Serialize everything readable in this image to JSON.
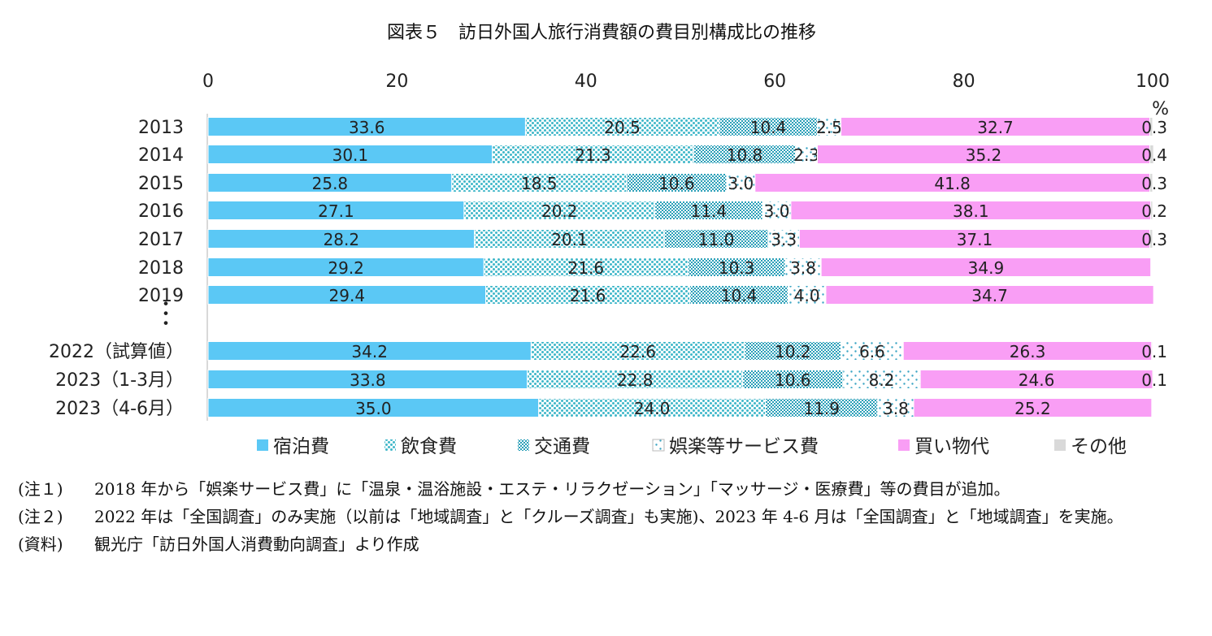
{
  "chart_data": {
    "type": "bar",
    "orientation": "horizontal",
    "stacked": true,
    "title": "図表５　訪日外国人旅行消費額の費目別構成比の推移",
    "unit": "%",
    "xlim": [
      0,
      100
    ],
    "xticks": [
      "0",
      "20",
      "40",
      "60",
      "80",
      "100"
    ],
    "grid": false,
    "legend_position": "bottom",
    "categories": [
      "2013",
      "2014",
      "2015",
      "2016",
      "2017",
      "2018",
      "2019",
      "2022（試算値）",
      "2023（1-3月）",
      "2023（4-6月）"
    ],
    "gap_marker": "・\n・\n・",
    "series": [
      {
        "name": "宿泊費",
        "color": "#5bc8f5",
        "pattern": "solid",
        "values": [
          33.6,
          30.1,
          25.8,
          27.1,
          28.2,
          29.2,
          29.4,
          34.2,
          33.8,
          35.0
        ],
        "labels": [
          "33.6",
          "30.1",
          "25.8",
          "27.1",
          "28.2",
          "29.2",
          "29.4",
          "34.2",
          "33.8",
          "35.0"
        ]
      },
      {
        "name": "飲食費",
        "color": "#3fb7c9",
        "pattern": "dense-dots",
        "values": [
          20.5,
          21.3,
          18.5,
          20.2,
          20.1,
          21.6,
          21.6,
          22.6,
          22.8,
          24.0
        ],
        "labels": [
          "20.5",
          "21.3",
          "18.5",
          "20.2",
          "20.1",
          "21.6",
          "21.6",
          "22.6",
          "22.8",
          "24.0"
        ]
      },
      {
        "name": "交通費",
        "color": "#2a9fb8",
        "pattern": "grid-dots",
        "values": [
          10.4,
          10.8,
          10.6,
          11.4,
          11.0,
          10.3,
          10.4,
          10.2,
          10.6,
          11.9
        ],
        "labels": [
          "10.4",
          "10.8",
          "10.6",
          "11.4",
          "11.0",
          "10.3",
          "10.4",
          "10.2",
          "10.6",
          "11.9"
        ]
      },
      {
        "name": "娯楽等サービス費",
        "color": "#3aa5c4",
        "pattern": "sparse-dots",
        "values": [
          2.5,
          2.3,
          3.0,
          3.0,
          3.3,
          3.8,
          4.0,
          6.6,
          8.2,
          3.8
        ],
        "labels": [
          "2.5",
          "2.3",
          "3.0",
          "3.0",
          "3.3",
          "3.8",
          "4.0",
          "6.6",
          "8.2",
          "3.8"
        ]
      },
      {
        "name": "買い物代",
        "color": "#f99ef5",
        "pattern": "solid",
        "values": [
          32.7,
          35.2,
          41.8,
          38.1,
          37.1,
          34.9,
          34.7,
          26.3,
          24.6,
          25.2
        ],
        "labels": [
          "32.7",
          "35.2",
          "41.8",
          "38.1",
          "37.1",
          "34.9",
          "34.7",
          "26.3",
          "24.6",
          "25.2"
        ]
      },
      {
        "name": "その他",
        "color": "#d9d9d9",
        "pattern": "solid",
        "values": [
          0.3,
          0.4,
          0.3,
          0.2,
          0.3,
          0.0,
          0.0,
          0.1,
          0.1,
          0.0
        ],
        "labels": [
          "0.3",
          "0.4",
          "0.3",
          "0.2",
          "0.3",
          "",
          "",
          "0.1",
          "0.1",
          ""
        ]
      }
    ]
  },
  "notes": [
    {
      "label": "(注１)",
      "text": "2018 年から「娯楽サービス費」に「温泉・温浴施設・エステ・リラクゼーション」「マッサージ・医療費」等の費目が追加。"
    },
    {
      "label": "(注２)",
      "text": "2022 年は「全国調査」のみ実施（以前は「地域調査」と「クルーズ調査」も実施)、2023 年 4-6 月は「全国調査」と「地域調査」を実施。"
    },
    {
      "label": "(資料)",
      "text": "観光庁「訪日外国人消費動向調査」より作成"
    }
  ]
}
